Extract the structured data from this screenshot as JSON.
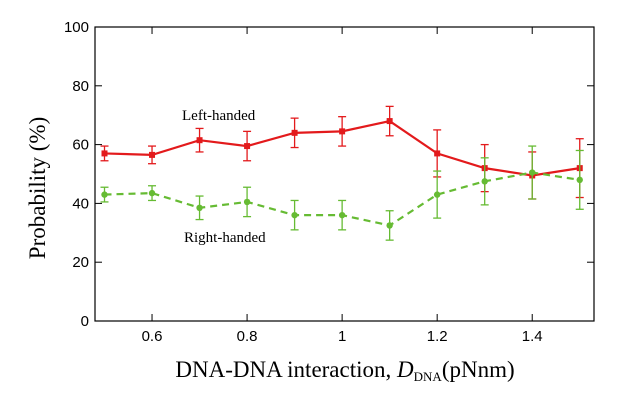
{
  "chart_data": {
    "type": "line",
    "title": "",
    "xlabel": "DNA-DNA interaction, ",
    "xlabel_symbol": "D",
    "xlabel_subscript": "DNA",
    "xlabel_unit": "(pNnm)",
    "ylabel": "Probability (%)",
    "xlim": [
      0.48,
      1.53
    ],
    "ylim": [
      0,
      100
    ],
    "x_ticks": [
      "0.6",
      "0.8",
      "1",
      "1.2",
      "1.4"
    ],
    "x_tick_values": [
      0.6,
      0.8,
      1.0,
      1.2,
      1.4
    ],
    "y_ticks": [
      "0",
      "20",
      "40",
      "60",
      "80",
      "100"
    ],
    "y_tick_values": [
      0,
      20,
      40,
      60,
      80,
      100
    ],
    "x": [
      0.5,
      0.6,
      0.7,
      0.8,
      0.9,
      1.0,
      1.1,
      1.2,
      1.3,
      1.4,
      1.5
    ],
    "series": [
      {
        "name": "Left-handed",
        "color": "#e31a1c",
        "line_style": "solid",
        "marker": "square",
        "values": [
          57,
          56.5,
          61.5,
          59.5,
          64,
          64.5,
          68,
          57,
          52,
          49.5,
          52
        ],
        "errors": [
          2.5,
          3,
          4,
          5,
          5,
          5,
          5,
          8,
          8,
          8,
          10
        ]
      },
      {
        "name": "Right-handed",
        "color": "#66bb33",
        "line_style": "dashed",
        "marker": "circle",
        "values": [
          43,
          43.5,
          38.5,
          40.5,
          36,
          36,
          32.5,
          43,
          47.5,
          50.5,
          48
        ],
        "errors": [
          2.5,
          2.5,
          4,
          5,
          5,
          5,
          5,
          8,
          8,
          9,
          10
        ]
      }
    ],
    "annotations": [
      {
        "text": "Left-handed",
        "series": "Left-handed"
      },
      {
        "text": "Right-handed",
        "series": "Right-handed"
      }
    ],
    "grid": false,
    "legend": "none"
  }
}
